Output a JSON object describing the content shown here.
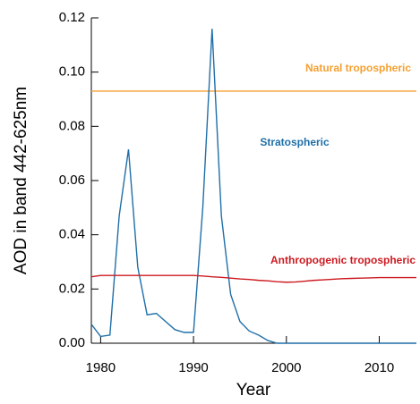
{
  "chart_data": {
    "type": "line",
    "x_label": "Year",
    "y_label": "AOD in band 442-625nm",
    "x": [
      1979,
      1980,
      1981,
      1982,
      1983,
      1984,
      1985,
      1986,
      1987,
      1988,
      1989,
      1990,
      1991,
      1992,
      1993,
      1994,
      1995,
      1996,
      1997,
      1998,
      1999,
      2000,
      2001,
      2002,
      2003,
      2004,
      2005,
      2006,
      2007,
      2008,
      2009,
      2010,
      2011,
      2012,
      2013,
      2014
    ],
    "series": [
      {
        "name": "Natural tropospheric",
        "color": "#f5a030",
        "values": [
          0.093,
          0.093,
          0.093,
          0.093,
          0.093,
          0.093,
          0.093,
          0.093,
          0.093,
          0.093,
          0.093,
          0.093,
          0.093,
          0.093,
          0.093,
          0.093,
          0.093,
          0.093,
          0.093,
          0.093,
          0.093,
          0.093,
          0.093,
          0.093,
          0.093,
          0.093,
          0.093,
          0.093,
          0.093,
          0.093,
          0.093,
          0.093,
          0.093,
          0.093,
          0.093,
          0.093
        ]
      },
      {
        "name": "Stratospheric",
        "color": "#1f6fa8",
        "values": [
          0.007,
          0.0025,
          0.003,
          0.047,
          0.0715,
          0.028,
          0.0105,
          0.011,
          0.008,
          0.005,
          0.004,
          0.004,
          0.05,
          0.116,
          0.047,
          0.018,
          0.008,
          0.0045,
          0.003,
          0.001,
          0,
          0,
          0,
          0,
          0,
          0,
          0,
          0,
          0,
          0,
          0,
          0,
          0,
          0,
          0,
          0
        ]
      },
      {
        "name": "Anthropogenic tropospheric",
        "color": "#cc1a20",
        "values": [
          0.0245,
          0.025,
          0.025,
          0.025,
          0.025,
          0.025,
          0.025,
          0.025,
          0.025,
          0.025,
          0.025,
          0.025,
          0.0248,
          0.0245,
          0.0243,
          0.024,
          0.0237,
          0.0235,
          0.0232,
          0.023,
          0.0227,
          0.0225,
          0.0226,
          0.0229,
          0.0232,
          0.0234,
          0.0236,
          0.0238,
          0.0239,
          0.024,
          0.0241,
          0.0242,
          0.0242,
          0.0242,
          0.0242,
          0.0242
        ]
      }
    ],
    "xlim": [
      1979,
      2014
    ],
    "xticks": [
      1980,
      1990,
      2000,
      2010
    ],
    "ylim": [
      0,
      0.12
    ],
    "yticks": [
      {
        "value": 0,
        "label": "0.00"
      },
      0.02,
      0.04,
      0.06,
      0.08,
      {
        "value": 0.1,
        "label": "0.10"
      },
      0.12
    ],
    "grid": false
  }
}
